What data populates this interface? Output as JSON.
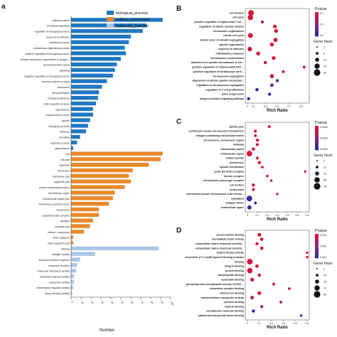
{
  "panel_a": {
    "letter": "a",
    "xlabel": "Number",
    "xticks": [
      "0",
      "10",
      "20",
      "30",
      "40",
      "50",
      "60",
      "70",
      "80",
      "90",
      "100"
    ],
    "legend": [
      {
        "name": "biological_process",
        "color": "#1f78c1"
      },
      {
        "name": "cellular_component",
        "color": "#e8892b"
      },
      {
        "name": "molecular_function",
        "color": "#a9c8e8"
      }
    ]
  },
  "panel_b": {
    "letter": "B",
    "xlabel": "Rich Ratio",
    "xticks": [
      "0",
      "0.1",
      "0.3",
      "0.5",
      "0.7",
      "0.9"
    ],
    "pvalue_title": "Pvalue",
    "pvalue_ticks": [
      "0.1",
      "0.0",
      "0.0"
    ],
    "size_title": "Gene Num",
    "size_ticks": [
      "2",
      "8",
      "14",
      "20",
      "25"
    ]
  },
  "panel_c": {
    "letter": "C",
    "xlabel": "Rich Ratio",
    "xticks": [
      "0",
      "0.1",
      "0.2",
      "0.3",
      "0.4",
      "0.5",
      "0.6"
    ],
    "pvalue_title": "Pvalue",
    "pvalue_ticks": [
      "0.0000",
      "0.0000",
      "0.0000"
    ],
    "size_title": "Gene Num",
    "size_ticks": [
      "2",
      "21",
      "39",
      "58",
      "76"
    ]
  },
  "panel_d": {
    "letter": "D",
    "xlabel": "Rich Ratio",
    "xticks": [
      "0",
      "0.1",
      "0.2",
      "0.3",
      "0.4",
      "0.5"
    ],
    "pvalue_title": "Pvalue",
    "pvalue_ticks": [
      "0.003",
      "0.002",
      "0.001"
    ],
    "size_title": "Gene Num",
    "size_ticks": [
      "2",
      "16",
      "29",
      "43",
      "56"
    ]
  },
  "chart_data": [
    {
      "type": "bar",
      "title": "",
      "xlabel": "Number",
      "xlim": [
        0,
        100
      ],
      "categories": [
        "cellular process",
        "biological regulation",
        "regulation of biological process",
        "response to stimulus",
        "metabolic process",
        "multicellular organismal process",
        "positive regulation of biological process",
        "cellular component organization or biogen...",
        "developmental process",
        "signaling",
        "negative regulation of biological process",
        "immune system process",
        "locomotion",
        "cell proliferation",
        "biological adhesion",
        "multi-organism process",
        "reproduction",
        "reproductive process",
        "growth",
        "biological_process",
        "behavior",
        "cell killing",
        "rhythmic process",
        "pigmentation",
        "cell",
        "cell part",
        "organelle",
        "membrane",
        "membrane part",
        "organelle part",
        "protein-containing complex",
        "extracellular region",
        "extracellular region part",
        "membrane-enclosed lumen",
        "cell junction",
        "supramolecular complex",
        "synapse",
        "synapse part",
        "cellular_component",
        "other organism",
        "other organism part",
        "binding",
        "catalytic activity",
        "molecular function regulator",
        "molecular_function",
        "molecular transducer activity",
        "structural molecule activity",
        "transporter activity",
        "transcription regulator activity",
        "cargo receptor activity"
      ],
      "groups": [
        "biological_process",
        "biological_process",
        "biological_process",
        "biological_process",
        "biological_process",
        "biological_process",
        "biological_process",
        "biological_process",
        "biological_process",
        "biological_process",
        "biological_process",
        "biological_process",
        "biological_process",
        "biological_process",
        "biological_process",
        "biological_process",
        "biological_process",
        "biological_process",
        "biological_process",
        "biological_process",
        "biological_process",
        "biological_process",
        "biological_process",
        "biological_process",
        "cellular_component",
        "cellular_component",
        "cellular_component",
        "cellular_component",
        "cellular_component",
        "cellular_component",
        "cellular_component",
        "cellular_component",
        "cellular_component",
        "cellular_component",
        "cellular_component",
        "cellular_component",
        "cellular_component",
        "cellular_component",
        "cellular_component",
        "cellular_component",
        "cellular_component",
        "molecular_function",
        "molecular_function",
        "molecular_function",
        "molecular_function",
        "molecular_function",
        "molecular_function",
        "molecular_function",
        "molecular_function",
        "molecular_function"
      ],
      "values": [
        92,
        76,
        72,
        60,
        58,
        54,
        55,
        50,
        46,
        44,
        42,
        36,
        31,
        28,
        27,
        25,
        22,
        22,
        19,
        17,
        15,
        9,
        6,
        2,
        92,
        90,
        78,
        62,
        58,
        60,
        54,
        44,
        42,
        38,
        28,
        28,
        22,
        19,
        13,
        2,
        2,
        88,
        24,
        9,
        6,
        5,
        3,
        3,
        2,
        1
      ]
    },
    {
      "type": "scatter",
      "title": "",
      "xlabel": "Rich Ratio",
      "xlim": [
        0,
        1
      ],
      "categories": [
        "cell division",
        "cell cycle",
        "positive regulation of alpha-beta T cell ...",
        "regulation of mitotic nuclear division",
        "kinetochore organization",
        "mitotic cell cycle",
        "mitotic sister chromatid segregation",
        "spindle organization",
        "response to stimulus",
        "inflammatory response",
        "chromosome condensation",
        "attachment of spindle microtubules to kin...",
        "positive regulation of mitochondrial ATP ...",
        "positive regulation of keratinocyte stem...",
        "chromosome segregation",
        "attachment of mitotic spindle microtubul...",
        "regulation of chromosome segregation",
        "regulation of T cell proliferation",
        "plate congression",
        "integrin-mediated signaling pathway"
      ],
      "x": [
        0.06,
        0.05,
        0.25,
        0.46,
        0.48,
        0.05,
        0.47,
        0.41,
        0.04,
        0.18,
        0.44,
        0.3,
        0.95,
        0.6,
        0.41,
        0.5,
        0.41,
        0.16,
        0.37,
        0.02
      ],
      "size": [
        25,
        22,
        3,
        6,
        7,
        16,
        10,
        8,
        12,
        8,
        7,
        4,
        2,
        2,
        9,
        3,
        5,
        4,
        3,
        3
      ],
      "pvalue_level": [
        0.02,
        0.02,
        0.2,
        0.05,
        0.05,
        0.02,
        0.05,
        0.05,
        0.05,
        0.08,
        0.08,
        0.2,
        0.12,
        0.2,
        0.25,
        0.75,
        0.7,
        0.95,
        0.95,
        0.95
      ]
    },
    {
      "type": "scatter",
      "title": "",
      "xlabel": "Rich Ratio",
      "xlim": [
        0,
        0.6
      ],
      "categories": [
        "spindle pole",
        "condensed nuclear chromosome kinetochore",
        "collagen-containing extracellular matrix",
        "chromosome, centromeric region",
        "midbody",
        "extracellular matrix",
        "extracellular region",
        "mitotic spindle",
        "kinetochore",
        "spindle microtubule",
        "cyclin B1-CDK1 complex",
        "kinesin complex",
        "chromosome passenger complex",
        "cell surface",
        "centrosome",
        "condensed nuclear chromosome outer kineto...",
        "cytoplasm",
        "collagen trimer",
        "extracellular space"
      ],
      "x": [
        0.22,
        0.08,
        0.08,
        0.1,
        0.1,
        0.06,
        0.02,
        0.1,
        0.12,
        0.15,
        0.58,
        0.2,
        0.24,
        0.06,
        0.06,
        0.3,
        0.02,
        0.08,
        0.02
      ],
      "size": [
        6,
        8,
        6,
        10,
        8,
        12,
        70,
        6,
        12,
        5,
        2,
        4,
        3,
        10,
        8,
        3,
        76,
        5,
        30
      ],
      "pvalue_level": [
        0.05,
        0.05,
        0.05,
        0.05,
        0.05,
        0.05,
        0.05,
        0.05,
        0.05,
        0.05,
        0.05,
        0.05,
        0.05,
        0.05,
        0.05,
        0.2,
        0.95,
        0.95,
        0.95
      ]
    },
    {
      "type": "scatter",
      "title": "",
      "xlabel": "Rich Ratio",
      "xlim": [
        0,
        0.5
      ],
      "categories": [
        "protein kinase binding",
        "microtubule motor activity",
        "extracellular matrix structural constitu...",
        "extracellular matrix structural constitu...",
        "histone kinase activity",
        "chemokine (C-C motif) ligand 5 binding protease",
        "binding",
        "integrin binding",
        "protein binding",
        "carbohydrate binding",
        "nucleotide binding",
        "phosphoprotein phosphatase activity CXCR3 ...",
        "chemokine receptor binding",
        "calcium ion binding",
        "transmembrane transporter activity",
        "cytokine binding",
        "heparin binding",
        "cell adhesion molecule binding",
        "platelet-derived growth factor binding"
      ],
      "x": [
        0.1,
        0.12,
        0.08,
        0.12,
        0.5,
        0.5,
        0.02,
        0.08,
        0.02,
        0.1,
        0.04,
        0.22,
        0.35,
        0.1,
        0.04,
        0.28,
        0.12,
        0.05,
        0.45
      ],
      "size": [
        14,
        10,
        8,
        10,
        2,
        2,
        56,
        10,
        50,
        8,
        16,
        4,
        3,
        14,
        12,
        4,
        6,
        8,
        2
      ],
      "pvalue_level": [
        0.05,
        0.05,
        0.05,
        0.05,
        0.05,
        0.05,
        0.05,
        0.05,
        0.05,
        0.05,
        0.05,
        0.05,
        0.05,
        0.1,
        0.2,
        0.2,
        0.3,
        0.95,
        0.95
      ]
    }
  ]
}
